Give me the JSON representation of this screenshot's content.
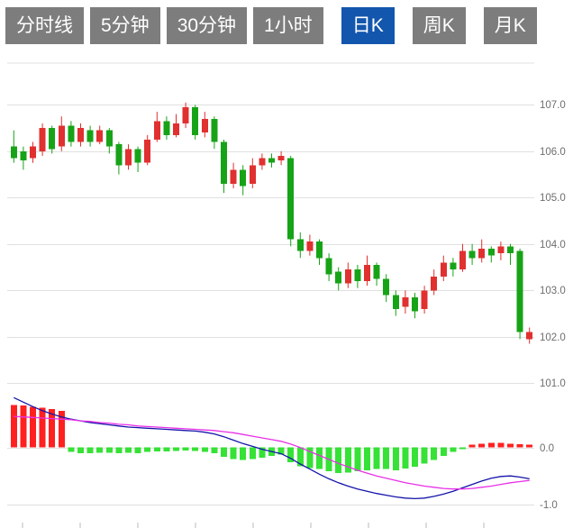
{
  "toolbar": {
    "tabs": [
      {
        "label": "分时线",
        "active": false
      },
      {
        "label": "5分钟",
        "active": false
      },
      {
        "label": "30分钟",
        "active": false
      },
      {
        "label": "1小时",
        "active": false
      },
      {
        "label": "日K",
        "active": true
      },
      {
        "label": "周K",
        "active": false
      },
      {
        "label": "月K",
        "active": false
      }
    ],
    "colors": {
      "tab_bg": "#7d7d7d",
      "tab_active_bg": "#1356ad",
      "tab_text": "#ffffff"
    }
  },
  "chart_data": {
    "type": "candlestick",
    "title": "",
    "legend_position": "none",
    "grid": true,
    "panels": [
      {
        "name": "price",
        "ylim": [
          100.85,
          107.9
        ],
        "yticks": [
          107,
          106,
          105,
          104,
          103,
          102,
          101
        ],
        "ytick_labels": [
          "107.0",
          "106.0",
          "105.0",
          "104.0",
          "103.0",
          "102.0",
          "101.0"
        ],
        "ohlc": [
          [
            106.1,
            106.45,
            105.75,
            105.85
          ],
          [
            106.0,
            106.1,
            105.6,
            105.8
          ],
          [
            105.85,
            106.2,
            105.75,
            106.1
          ],
          [
            106.0,
            106.6,
            105.9,
            106.5
          ],
          [
            106.5,
            106.55,
            105.95,
            106.05
          ],
          [
            106.1,
            106.75,
            106.0,
            106.55
          ],
          [
            106.55,
            106.65,
            106.1,
            106.2
          ],
          [
            106.2,
            106.6,
            106.1,
            106.5
          ],
          [
            106.45,
            106.55,
            106.1,
            106.2
          ],
          [
            106.2,
            106.55,
            106.15,
            106.45
          ],
          [
            106.45,
            106.5,
            105.95,
            106.1
          ],
          [
            106.15,
            106.2,
            105.5,
            105.7
          ],
          [
            105.7,
            106.15,
            105.6,
            106.05
          ],
          [
            106.05,
            106.1,
            105.55,
            105.75
          ],
          [
            105.75,
            106.35,
            105.7,
            106.25
          ],
          [
            106.25,
            106.85,
            106.2,
            106.65
          ],
          [
            106.65,
            106.75,
            106.25,
            106.35
          ],
          [
            106.35,
            106.8,
            106.3,
            106.6
          ],
          [
            106.6,
            107.05,
            106.5,
            106.95
          ],
          [
            106.95,
            107.0,
            106.25,
            106.35
          ],
          [
            106.4,
            106.85,
            106.3,
            106.7
          ],
          [
            106.7,
            106.75,
            106.05,
            106.2
          ],
          [
            106.2,
            106.25,
            105.1,
            105.3
          ],
          [
            105.3,
            105.75,
            105.2,
            105.6
          ],
          [
            105.6,
            105.7,
            105.05,
            105.25
          ],
          [
            105.3,
            105.85,
            105.2,
            105.7
          ],
          [
            105.7,
            105.95,
            105.6,
            105.85
          ],
          [
            105.85,
            105.95,
            105.65,
            105.75
          ],
          [
            105.8,
            106.0,
            105.7,
            105.9
          ],
          [
            105.85,
            105.9,
            103.95,
            104.1
          ],
          [
            104.1,
            104.25,
            103.7,
            103.85
          ],
          [
            103.85,
            104.2,
            103.75,
            104.05
          ],
          [
            104.05,
            104.1,
            103.55,
            103.7
          ],
          [
            103.7,
            103.8,
            103.2,
            103.35
          ],
          [
            103.4,
            103.5,
            103.0,
            103.15
          ],
          [
            103.15,
            103.6,
            103.05,
            103.45
          ],
          [
            103.45,
            103.55,
            103.05,
            103.2
          ],
          [
            103.2,
            103.75,
            103.1,
            103.55
          ],
          [
            103.55,
            103.6,
            103.1,
            103.25
          ],
          [
            103.25,
            103.35,
            102.75,
            102.9
          ],
          [
            102.9,
            103.0,
            102.45,
            102.6
          ],
          [
            102.65,
            103.0,
            102.5,
            102.85
          ],
          [
            102.85,
            102.95,
            102.4,
            102.55
          ],
          [
            102.6,
            103.1,
            102.5,
            103.0
          ],
          [
            103.0,
            103.45,
            102.9,
            103.3
          ],
          [
            103.3,
            103.75,
            103.2,
            103.6
          ],
          [
            103.6,
            103.7,
            103.3,
            103.45
          ],
          [
            103.45,
            104.0,
            103.4,
            103.85
          ],
          [
            103.85,
            104.0,
            103.55,
            103.7
          ],
          [
            103.7,
            104.1,
            103.6,
            103.9
          ],
          [
            103.9,
            103.95,
            103.6,
            103.75
          ],
          [
            103.8,
            104.05,
            103.65,
            103.95
          ],
          [
            103.95,
            104.0,
            103.55,
            103.8
          ],
          [
            103.85,
            103.9,
            101.95,
            102.1
          ],
          [
            101.95,
            102.2,
            101.85,
            102.1
          ]
        ]
      },
      {
        "name": "macd",
        "ylim": [
          -1.1,
          0.9
        ],
        "yticks": [
          0,
          -1
        ],
        "ytick_labels": [
          "0.0",
          "-1.0"
        ],
        "histogram": [
          0.75,
          0.74,
          0.72,
          0.7,
          0.68,
          0.65,
          -0.08,
          -0.1,
          -0.1,
          -0.09,
          -0.09,
          -0.1,
          -0.09,
          -0.1,
          -0.08,
          -0.07,
          -0.07,
          -0.06,
          -0.05,
          -0.06,
          -0.08,
          -0.1,
          -0.16,
          -0.2,
          -0.22,
          -0.2,
          -0.18,
          -0.15,
          -0.12,
          -0.26,
          -0.33,
          -0.36,
          -0.38,
          -0.42,
          -0.45,
          -0.44,
          -0.42,
          -0.4,
          -0.38,
          -0.38,
          -0.4,
          -0.37,
          -0.34,
          -0.28,
          -0.22,
          -0.15,
          -0.08,
          -0.03,
          0.05,
          0.07,
          0.08,
          0.08,
          0.07,
          0.06,
          0.05
        ],
        "dif": [
          0.88,
          0.8,
          0.72,
          0.65,
          0.59,
          0.54,
          0.5,
          0.47,
          0.44,
          0.42,
          0.4,
          0.38,
          0.36,
          0.35,
          0.34,
          0.33,
          0.32,
          0.31,
          0.3,
          0.29,
          0.27,
          0.24,
          0.19,
          0.13,
          0.07,
          0.02,
          -0.03,
          -0.07,
          -0.11,
          -0.19,
          -0.29,
          -0.38,
          -0.47,
          -0.55,
          -0.62,
          -0.68,
          -0.73,
          -0.77,
          -0.81,
          -0.84,
          -0.87,
          -0.89,
          -0.9,
          -0.89,
          -0.86,
          -0.82,
          -0.77,
          -0.71,
          -0.65,
          -0.59,
          -0.54,
          -0.51,
          -0.5,
          -0.52,
          -0.55
        ],
        "dea": [
          0.55,
          0.54,
          0.53,
          0.52,
          0.51,
          0.5,
          0.49,
          0.47,
          0.46,
          0.44,
          0.43,
          0.41,
          0.4,
          0.38,
          0.37,
          0.36,
          0.35,
          0.34,
          0.33,
          0.32,
          0.31,
          0.3,
          0.28,
          0.26,
          0.23,
          0.2,
          0.17,
          0.14,
          0.11,
          0.06,
          0.0,
          -0.07,
          -0.14,
          -0.21,
          -0.28,
          -0.34,
          -0.4,
          -0.45,
          -0.5,
          -0.54,
          -0.58,
          -0.62,
          -0.65,
          -0.68,
          -0.7,
          -0.72,
          -0.73,
          -0.73,
          -0.72,
          -0.7,
          -0.68,
          -0.65,
          -0.62,
          -0.6,
          -0.58
        ]
      }
    ],
    "colors": {
      "candle_up": "#e03030",
      "candle_down": "#17a317",
      "hist_up": "#ff2020",
      "hist_down": "#35e235",
      "dif_line": "#1414aa",
      "dea_line": "#e830e8",
      "grid": "#e0e0e0",
      "axis_text": "#6e6e6e"
    }
  }
}
